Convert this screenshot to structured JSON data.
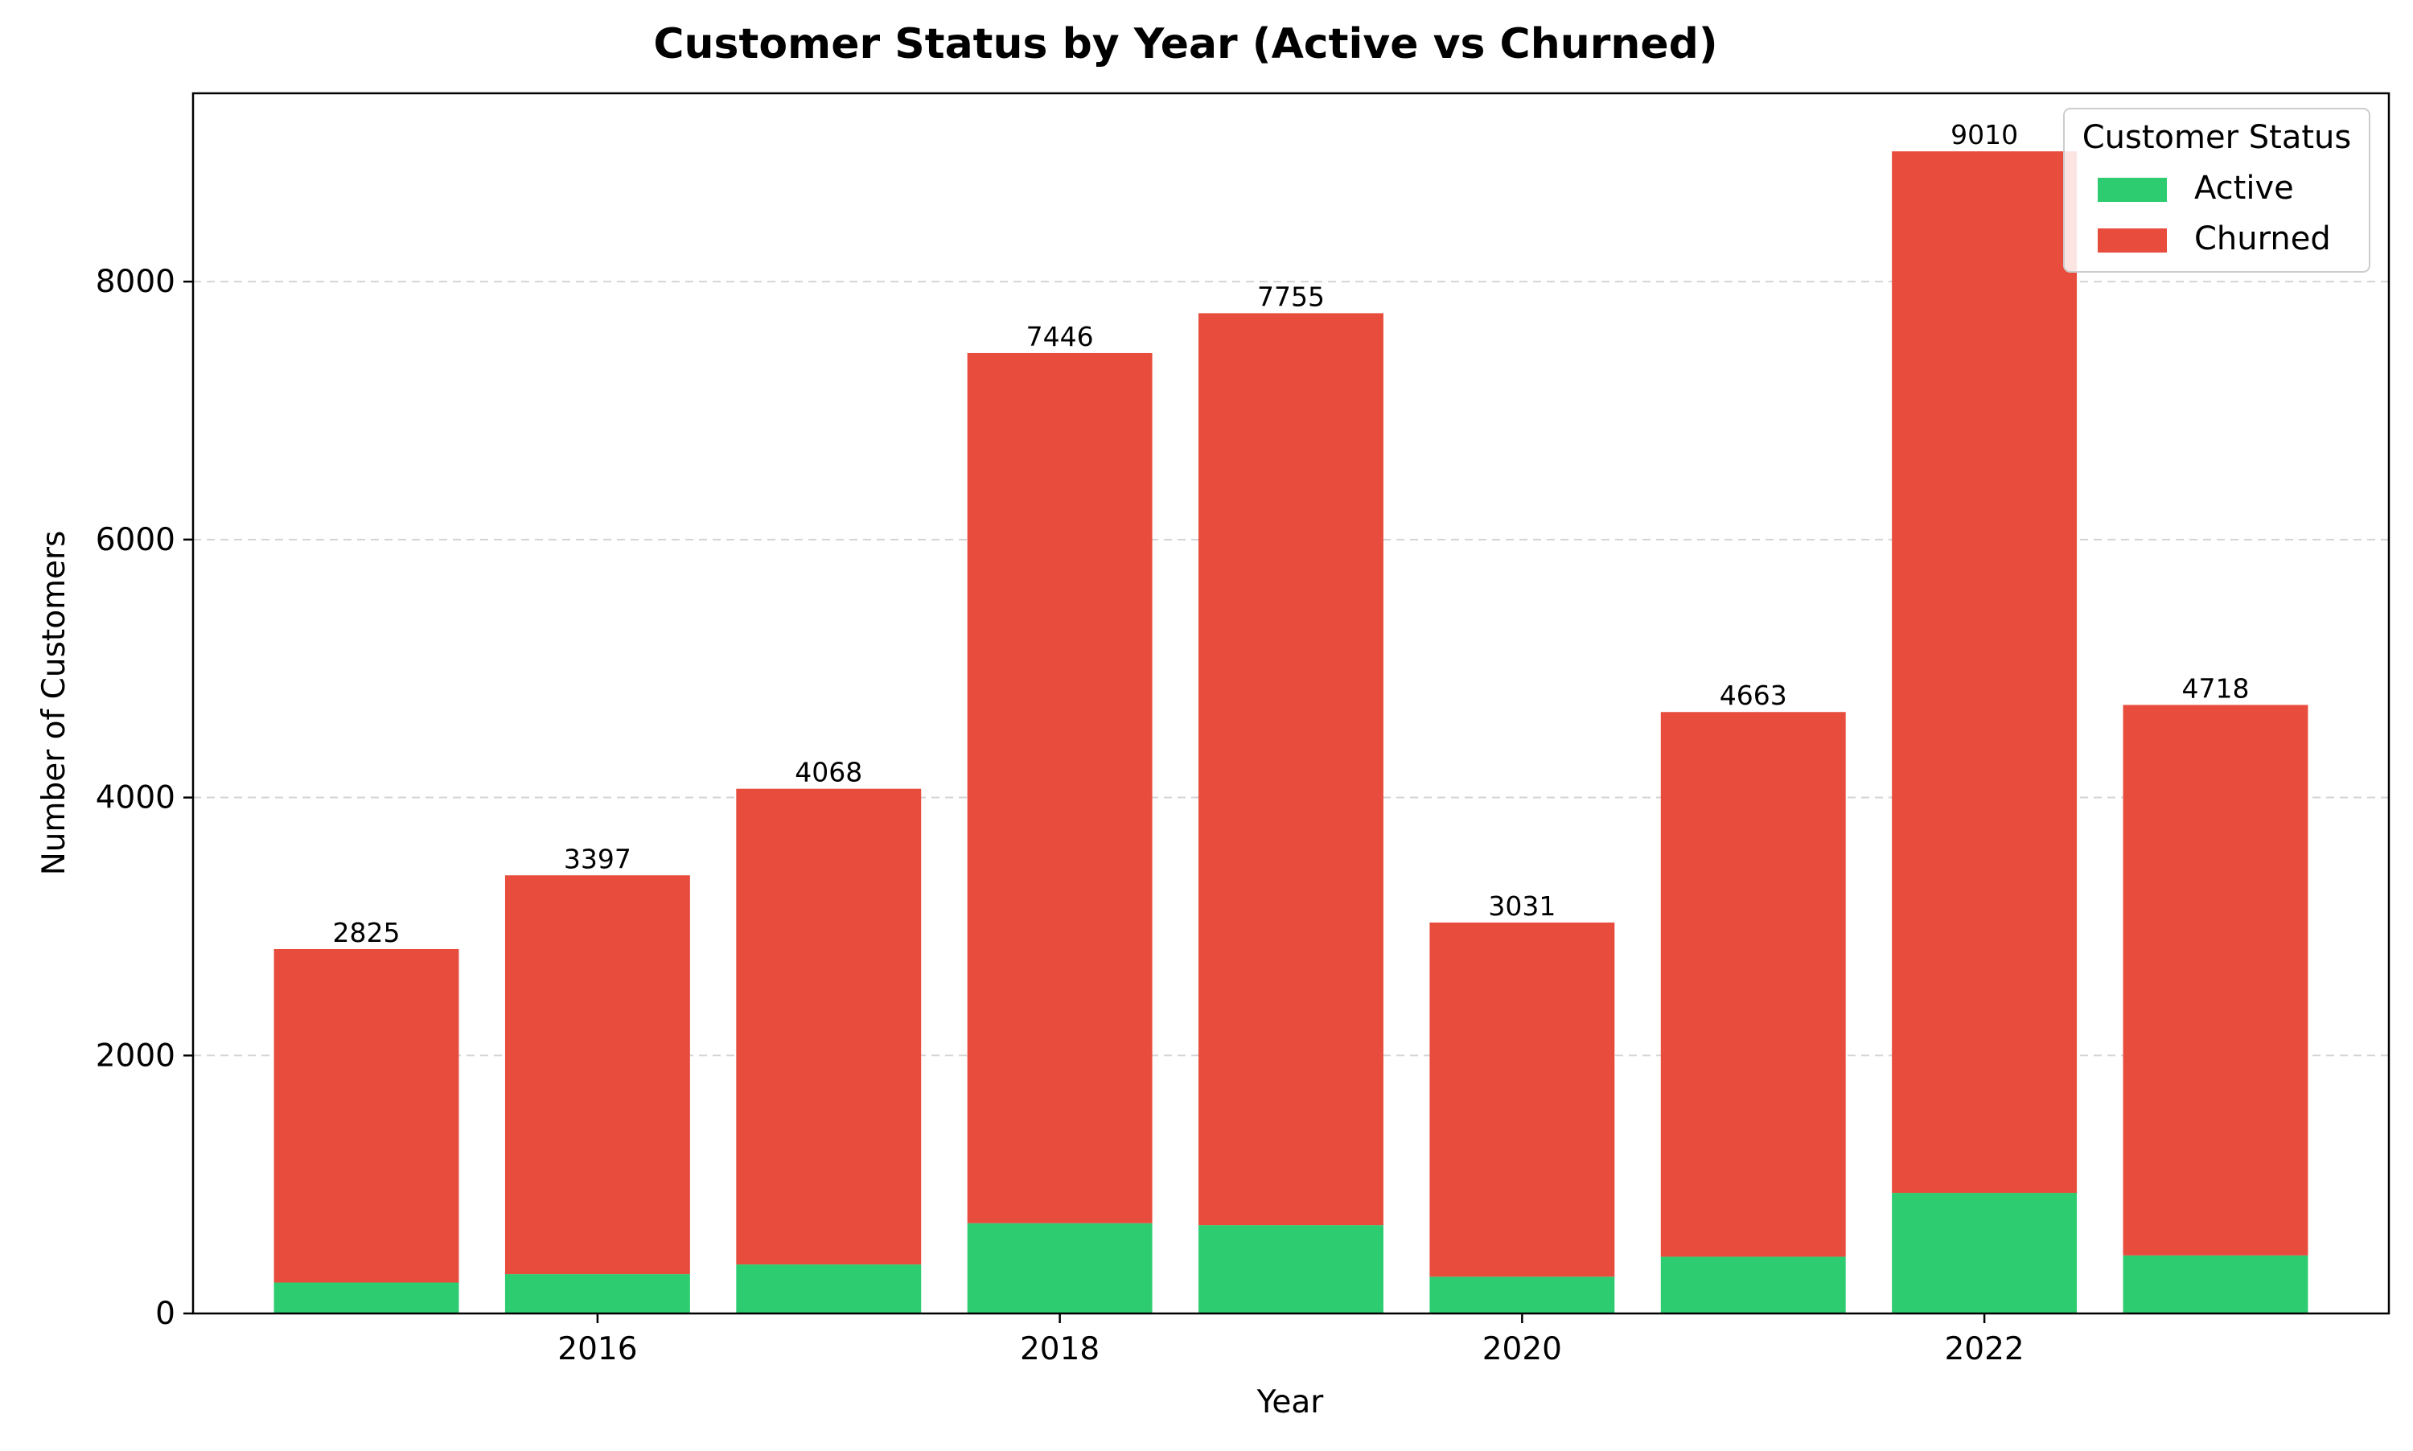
{
  "chart_data": {
    "type": "bar",
    "stacked": true,
    "title": "Customer Status by Year (Active vs Churned)",
    "xlabel": "Year",
    "ylabel": "Number of Customers",
    "x": [
      2015,
      2016,
      2017,
      2018,
      2019,
      2020,
      2021,
      2022,
      2023
    ],
    "xlim": [
      2014.25,
      2023.75
    ],
    "ylim": [
      0,
      9460
    ],
    "x_ticks": [
      2016,
      2018,
      2020,
      2022
    ],
    "y_ticks": [
      0,
      2000,
      4000,
      6000,
      8000
    ],
    "grid": "y-dashed",
    "legend": {
      "title": "Customer Status",
      "placement": "top-right"
    },
    "series": [
      {
        "name": "Active",
        "color": "#2ecc71",
        "values": [
          240,
          305,
          380,
          700,
          685,
          285,
          440,
          935,
          450
        ]
      },
      {
        "name": "Churned",
        "color": "#e74c3c",
        "values": [
          2585,
          3092,
          3688,
          6746,
          7070,
          2746,
          4223,
          8075,
          4268
        ]
      }
    ],
    "totals": [
      2825,
      3397,
      4068,
      7446,
      7755,
      3031,
      4663,
      9010,
      4718
    ],
    "total_labels": [
      "2825",
      "3397",
      "4068",
      "7446",
      "7755",
      "3031",
      "4663",
      "9010",
      "4718"
    ]
  }
}
